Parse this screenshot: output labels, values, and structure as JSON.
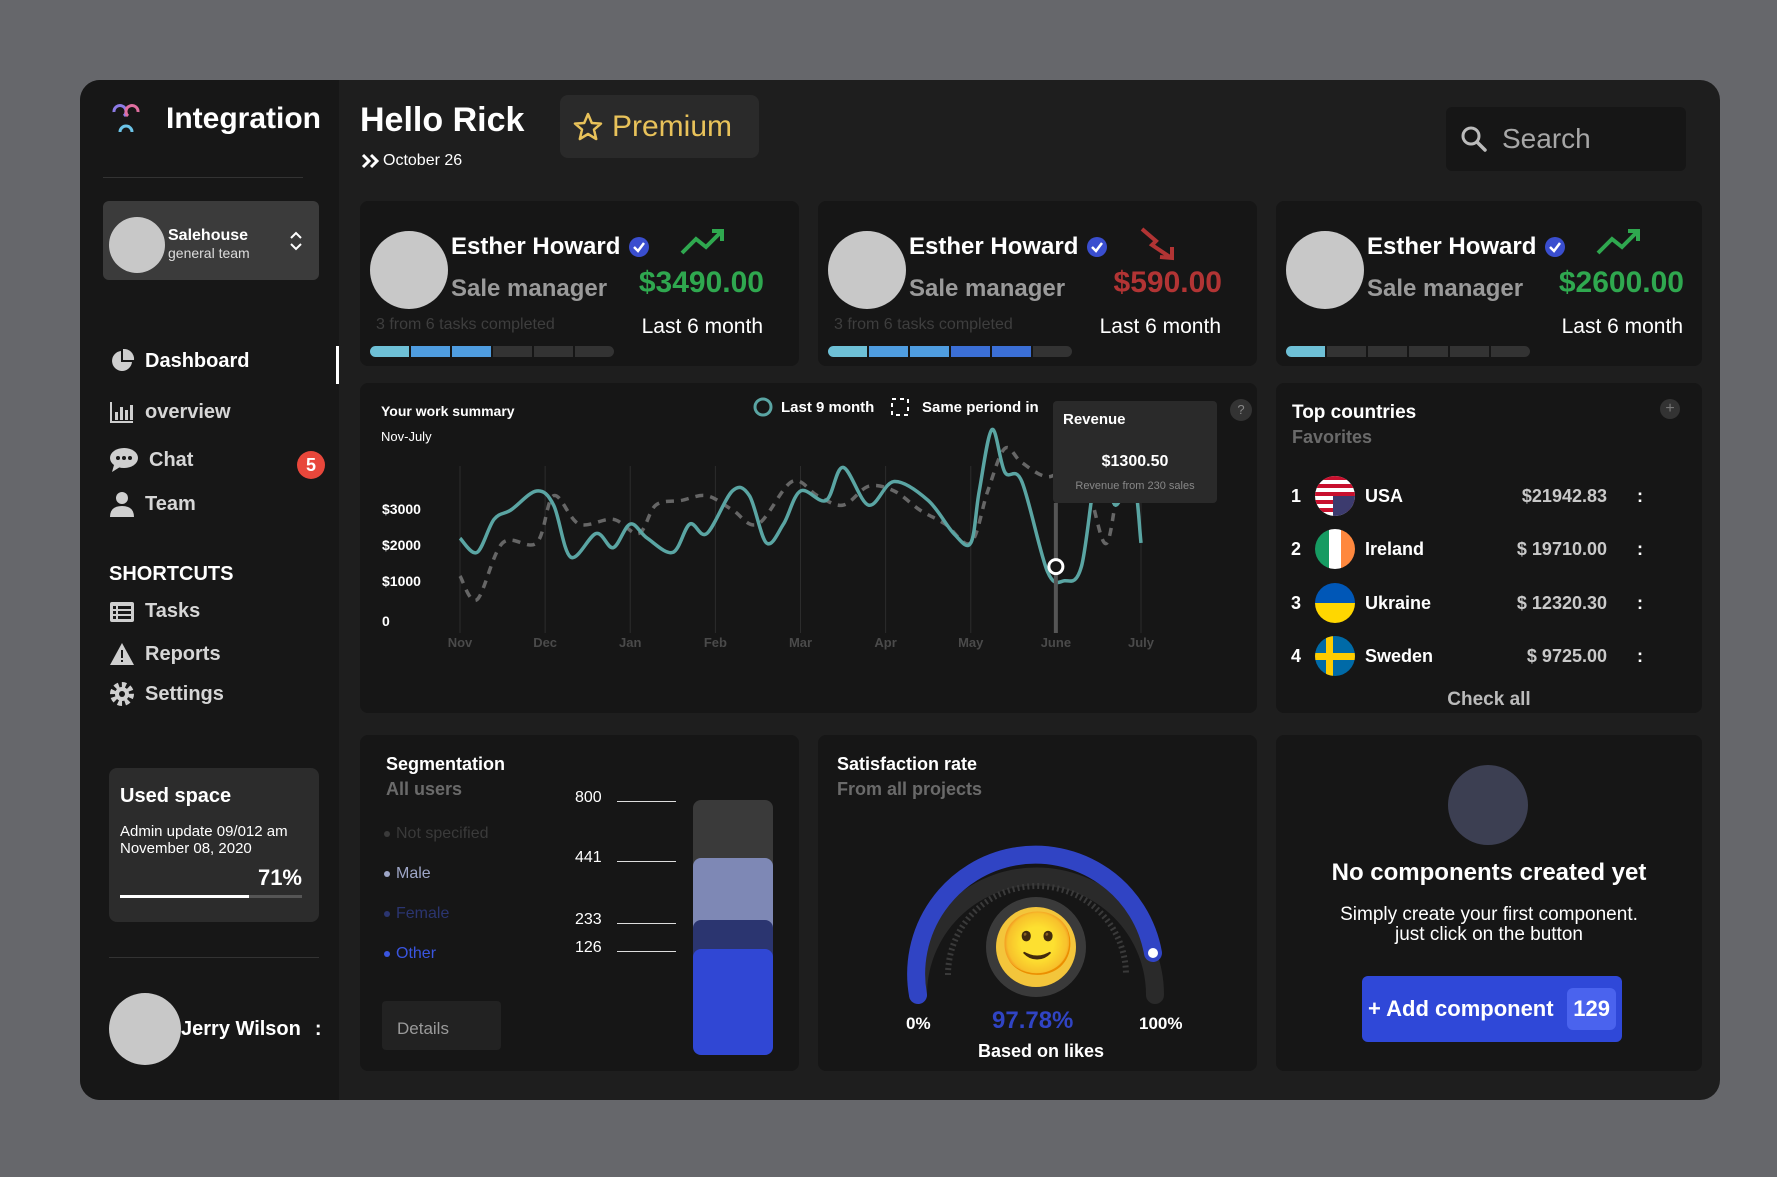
{
  "brand": {
    "name": "Integration"
  },
  "team": {
    "name": "Salehouse",
    "sub": "general team"
  },
  "nav": [
    {
      "label": "Dashboard",
      "icon": "pie-chart-icon",
      "active": true
    },
    {
      "label": "overview",
      "icon": "bar-chart-icon"
    },
    {
      "label": "Chat",
      "icon": "chat-icon",
      "badge": "5"
    },
    {
      "label": "Team",
      "icon": "person-icon"
    }
  ],
  "shortcuts": {
    "heading": "SHORTCUTS",
    "items": [
      {
        "label": "Tasks",
        "icon": "list-icon"
      },
      {
        "label": "Reports",
        "icon": "warning-icon"
      },
      {
        "label": "Settings",
        "icon": "gear-icon"
      }
    ]
  },
  "used_space": {
    "title": "Used space",
    "detail": "Admin update 09/012 am November 08, 2020",
    "percent_label": "71%",
    "percent": 71
  },
  "user": {
    "name": "Jerry Wilson",
    "menu": ":"
  },
  "header": {
    "greeting": "Hello Rick",
    "date": "October 26",
    "premium": "Premium",
    "search_placeholder": "Search"
  },
  "stats": [
    {
      "name": "Esther Howard",
      "role": "Sale manager",
      "amount": "$3490.00",
      "period": "Last 6 month",
      "tasks": "3 from 6 tasks completed",
      "trend": "up",
      "color": "#2fa84f",
      "filled": 3
    },
    {
      "name": "Esther Howard",
      "role": "Sale manager",
      "amount": "$590.00",
      "period": "Last 6 month",
      "tasks": "3 from 6 tasks completed",
      "trend": "down",
      "color": "#b23434",
      "filled": 5
    },
    {
      "name": "Esther Howard",
      "role": "Sale manager",
      "amount": "$2600.00",
      "period": "Last 6 month",
      "tasks": "",
      "trend": "up",
      "color": "#2fa84f",
      "filled": 1
    }
  ],
  "summary": {
    "title": "Your work summary",
    "subtitle": "Nov-July",
    "legend": [
      "Last 9 month",
      "Same periond in"
    ],
    "tooltip": {
      "title": "Revenue",
      "value": "$1300.50",
      "sub": "Revenue from 230 sales"
    },
    "help": "?"
  },
  "chart_data": {
    "type": "line",
    "categories": [
      "Nov",
      "Dec",
      "Jan",
      "Feb",
      "Mar",
      "Apr",
      "May",
      "June",
      "July"
    ],
    "y_ticks": [
      "$3000",
      "$2000",
      "$1000",
      "0"
    ],
    "ylim": [
      0,
      4000
    ],
    "series": [
      {
        "name": "Last 9 month",
        "style": "solid",
        "color": "#5aa5a3",
        "x": [
          0,
          0.2,
          0.4,
          0.6,
          0.9,
          1.1,
          1.3,
          1.6,
          1.8,
          2.0,
          2.2,
          2.5,
          2.7,
          2.9,
          3.2,
          3.4,
          3.6,
          3.8,
          4.0,
          4.3,
          4.5,
          4.8,
          5.1,
          5.5,
          5.8,
          6.0,
          6.1,
          6.25,
          6.4,
          6.6,
          6.9,
          7.1,
          7.3,
          7.5,
          7.7,
          7.9,
          8.0
        ],
        "y": [
          1900,
          1600,
          2300,
          2500,
          2900,
          2600,
          1500,
          2000,
          1700,
          2200,
          1900,
          1600,
          2200,
          2000,
          2900,
          2800,
          1800,
          2200,
          2900,
          2700,
          3400,
          2600,
          3100,
          2700,
          2000,
          1800,
          2900,
          4200,
          3300,
          3100,
          1200,
          1000,
          1300,
          3500,
          2600,
          3300,
          1800
        ]
      },
      {
        "name": "Same periond in",
        "style": "dashed",
        "color": "#666666",
        "x": [
          0,
          0.2,
          0.5,
          0.9,
          1.1,
          1.4,
          1.8,
          2.1,
          2.3,
          2.6,
          2.9,
          3.2,
          3.5,
          3.9,
          4.2,
          4.5,
          4.8,
          5.1,
          5.4,
          5.7,
          6.0,
          6.2,
          6.4,
          6.6,
          6.9,
          7.2,
          7.4,
          7.6,
          7.8,
          8.0
        ],
        "y": [
          1100,
          600,
          1800,
          1800,
          2800,
          2200,
          2300,
          2000,
          2600,
          2700,
          2800,
          2500,
          2200,
          3100,
          2800,
          2600,
          3000,
          2900,
          2500,
          2200,
          1800,
          2900,
          3800,
          3500,
          3200,
          3400,
          2800,
          1800,
          3600,
          2700
        ]
      }
    ],
    "highlight": {
      "x": 7.0,
      "y": 1300
    }
  },
  "countries": {
    "title": "Top countries",
    "subtitle": "Favorites",
    "plus": "+",
    "rows": [
      {
        "rank": "1",
        "name": "USA",
        "value": "$21942.83",
        "flag": "usa-flag-icon"
      },
      {
        "rank": "2",
        "name": "Ireland",
        "value": "$ 19710.00",
        "flag": "ireland-flag-icon"
      },
      {
        "rank": "3",
        "name": "Ukraine",
        "value": "$ 12320.30",
        "flag": "ukraine-flag-icon"
      },
      {
        "rank": "4",
        "name": "Sweden",
        "value": "$ 9725.00",
        "flag": "sweden-flag-icon"
      }
    ],
    "menu": ":",
    "check_all": "Check all"
  },
  "segmentation": {
    "title": "Segmentation",
    "subtitle": "All users",
    "legend": [
      {
        "label": "Not specified",
        "color": "#3a3a3a"
      },
      {
        "label": "Male",
        "color": "#9ea6c7"
      },
      {
        "label": "Female",
        "color": "#2b3570"
      },
      {
        "label": "Other",
        "color": "#3a55e0"
      }
    ],
    "ticks": [
      "800",
      "441",
      "233",
      "126"
    ],
    "details": "Details"
  },
  "satisfaction": {
    "title": "Satisfaction rate",
    "subtitle": "From all projects",
    "min": "0%",
    "max": "100%",
    "value_label": "97.78%",
    "value": 97.78,
    "based_on": "Based on likes",
    "face": "🙂"
  },
  "empty_state": {
    "title": "No components created yet",
    "line1": "Simply create your first component.",
    "line2": "just click on the button",
    "button": "+ Add component",
    "count": "129"
  }
}
